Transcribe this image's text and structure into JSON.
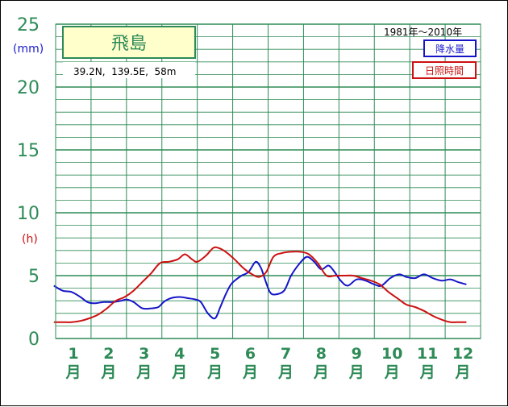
{
  "chart_data": {
    "type": "line",
    "station": "飛島",
    "location": "39.2N,  139.5E,  58m",
    "period": "1981年～2010年",
    "unit_precip": "(mm)",
    "unit_sun": "(h)",
    "y_ticks": [
      "0",
      "5",
      "10",
      "15",
      "20",
      "25"
    ],
    "ylim": [
      0,
      25
    ],
    "months": [
      {
        "num": "1",
        "suffix": "月"
      },
      {
        "num": "2",
        "suffix": "月"
      },
      {
        "num": "3",
        "suffix": "月"
      },
      {
        "num": "4",
        "suffix": "月"
      },
      {
        "num": "5",
        "suffix": "月"
      },
      {
        "num": "6",
        "suffix": "月"
      },
      {
        "num": "7",
        "suffix": "月"
      },
      {
        "num": "8",
        "suffix": "月"
      },
      {
        "num": "9",
        "suffix": "月"
      },
      {
        "num": "10",
        "suffix": "月"
      },
      {
        "num": "11",
        "suffix": "月"
      },
      {
        "num": "12",
        "suffix": "月"
      }
    ],
    "x_unit": "month (1–13, continuous)",
    "grid": "on",
    "series": [
      {
        "name": "降水量",
        "color": "#1515c8",
        "x": [
          0.95,
          1.2,
          1.45,
          1.7,
          1.9,
          2.1,
          2.35,
          2.6,
          2.85,
          3.0,
          3.2,
          3.45,
          3.7,
          3.9,
          4.05,
          4.25,
          4.5,
          4.75,
          4.95,
          5.1,
          5.3,
          5.5,
          5.65,
          5.8,
          5.95,
          6.1,
          6.25,
          6.45,
          6.65,
          6.8,
          6.9,
          7.05,
          7.2,
          7.45,
          7.65,
          7.9,
          8.1,
          8.3,
          8.5,
          8.7,
          8.85,
          9.05,
          9.25,
          9.5,
          9.75,
          10.0,
          10.2,
          10.45,
          10.7,
          10.9,
          11.15,
          11.4,
          11.65,
          11.9,
          12.15,
          12.35,
          12.6
        ],
        "values": [
          4.2,
          3.8,
          3.7,
          3.3,
          2.9,
          2.8,
          2.9,
          2.9,
          3.0,
          3.1,
          2.9,
          2.4,
          2.4,
          2.5,
          2.9,
          3.2,
          3.3,
          3.2,
          3.1,
          2.9,
          2.0,
          1.6,
          2.5,
          3.5,
          4.3,
          4.7,
          5.0,
          5.3,
          6.1,
          5.6,
          4.8,
          3.7,
          3.5,
          3.8,
          5.0,
          6.0,
          6.5,
          6.1,
          5.5,
          5.8,
          5.4,
          4.6,
          4.2,
          4.7,
          4.6,
          4.3,
          4.2,
          4.8,
          5.1,
          4.9,
          4.8,
          5.1,
          4.8,
          4.6,
          4.7,
          4.5,
          4.3
        ]
      },
      {
        "name": "日照時間",
        "color": "#cc1111",
        "x": [
          0.95,
          1.2,
          1.45,
          1.7,
          1.95,
          2.2,
          2.45,
          2.7,
          2.95,
          3.2,
          3.45,
          3.7,
          3.95,
          4.2,
          4.45,
          4.65,
          4.85,
          5.0,
          5.25,
          5.45,
          5.6,
          5.8,
          6.05,
          6.3,
          6.55,
          6.75,
          6.95,
          7.15,
          7.4,
          7.65,
          7.9,
          8.15,
          8.4,
          8.65,
          8.9,
          9.15,
          9.4,
          9.65,
          9.9,
          10.15,
          10.4,
          10.65,
          10.9,
          11.15,
          11.4,
          11.65,
          11.9,
          12.15,
          12.4,
          12.6
        ],
        "values": [
          1.3,
          1.3,
          1.3,
          1.4,
          1.6,
          1.9,
          2.4,
          3.0,
          3.3,
          3.8,
          4.5,
          5.2,
          6.0,
          6.1,
          6.3,
          6.7,
          6.3,
          6.1,
          6.6,
          7.2,
          7.2,
          6.9,
          6.3,
          5.6,
          5.1,
          4.9,
          5.3,
          6.5,
          6.8,
          6.9,
          6.9,
          6.7,
          6.0,
          5.0,
          5.0,
          5.0,
          5.0,
          4.8,
          4.6,
          4.3,
          3.7,
          3.2,
          2.7,
          2.5,
          2.2,
          1.8,
          1.5,
          1.3,
          1.3,
          1.3
        ]
      }
    ]
  }
}
